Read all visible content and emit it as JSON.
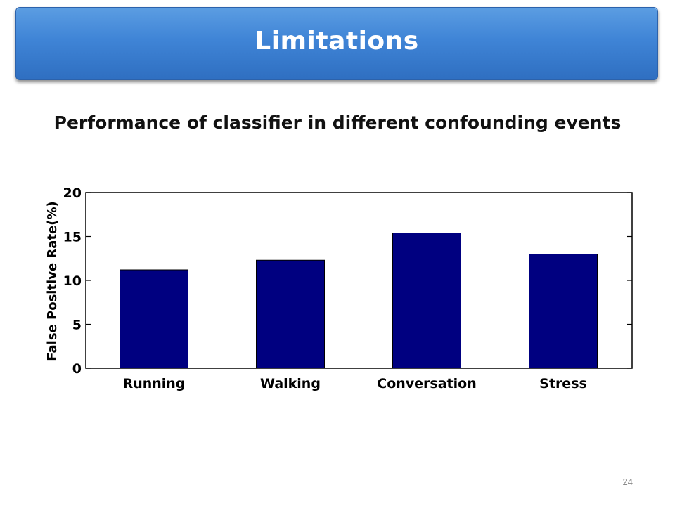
{
  "slide": {
    "title": "Limitations",
    "page_number": "24"
  },
  "colors": {
    "banner": "#3f84d6",
    "bar": "#000080"
  },
  "chart_data": {
    "type": "bar",
    "title": "Performance of classifier in different confounding events",
    "categories": [
      "Running",
      "Walking",
      "Conversation",
      "Stress"
    ],
    "values": [
      11.2,
      12.3,
      15.4,
      13.0
    ],
    "xlabel": "",
    "ylabel": "False Positive Rate(%)",
    "ylim": [
      0,
      20
    ],
    "yticks": [
      "0",
      "5",
      "10",
      "15",
      "20"
    ],
    "grid": false,
    "legend": "none"
  }
}
